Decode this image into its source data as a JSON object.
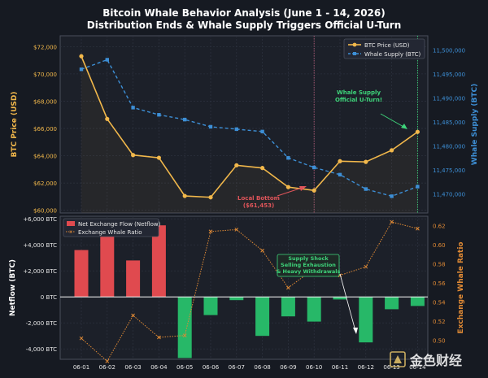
{
  "chart_data": [
    {
      "type": "line",
      "title": "Bitcoin Whale Behavior Analysis (June 1 - 14, 2026)",
      "subtitle": "Distribution Ends & Whale Supply Triggers Official U-Turn",
      "x": [
        "06-01",
        "06-02",
        "06-03",
        "06-04",
        "06-05",
        "06-06",
        "06-07",
        "06-08",
        "06-09",
        "06-10",
        "06-11",
        "06-12",
        "06-13",
        "06-14"
      ],
      "ylabel_left": "BTC Price (USD)",
      "ylabel_right": "Whale Supply (BTC)",
      "ylim_left": [
        59800,
        72800
      ],
      "ylim_right": [
        11466000,
        11503000
      ],
      "yticks_left": [
        60000,
        62000,
        64000,
        66000,
        68000,
        70000,
        72000
      ],
      "yticks_left_labels": [
        "$60,000",
        "$62,000",
        "$64,000",
        "$66,000",
        "$68,000",
        "$70,000",
        "$72,000"
      ],
      "yticks_right": [
        11470000,
        11475000,
        11480000,
        11485000,
        11490000,
        11495000,
        11500000
      ],
      "yticks_right_labels": [
        "11,470,000",
        "11,475,000",
        "11,480,000",
        "11,485,000",
        "11,490,000",
        "11,495,000",
        "11,500,000"
      ],
      "series": [
        {
          "name": "BTC Price (USD)",
          "axis": "left",
          "style": "solid-circle",
          "color": "#f2b84b",
          "values": [
            71300,
            66700,
            64050,
            63850,
            61050,
            60950,
            63300,
            63100,
            61700,
            61453,
            63600,
            63550,
            64400,
            65750
          ]
        },
        {
          "name": "Whale Supply (BTC)",
          "axis": "right",
          "style": "dashed-square",
          "color": "#3d8fd6",
          "values": [
            11496000,
            11498000,
            11488000,
            11486500,
            11485500,
            11484000,
            11483500,
            11483000,
            11477500,
            11475500,
            11474000,
            11471000,
            11469500,
            11471500
          ]
        }
      ],
      "annotations": [
        {
          "text": [
            "Whale Supply",
            "Official U-Turn!"
          ],
          "color": "#3ed47a",
          "target_x": "06-14",
          "target_series": "Whale Supply (BTC)"
        },
        {
          "text": [
            "Local Bottom",
            "($61,453)"
          ],
          "color": "#e0555a",
          "target_x": "06-10",
          "target_series": "BTC Price (USD)"
        }
      ],
      "vlines": [
        {
          "x": "06-10",
          "color": "#b05a78"
        },
        {
          "x": "06-14",
          "color": "#3ed47a"
        }
      ],
      "legend": [
        "BTC Price (USD)",
        "Whale Supply (BTC)"
      ],
      "legend_position": "top-right",
      "grid": true
    },
    {
      "type": "bar",
      "x": [
        "06-01",
        "06-02",
        "06-03",
        "06-04",
        "06-05",
        "06-06",
        "06-07",
        "06-08",
        "06-09",
        "06-10",
        "06-11",
        "06-12",
        "06-13",
        "06-14"
      ],
      "ylabel_left": "Netflow (BTC)",
      "ylabel_right": "Exchange Whale Ratio",
      "ylim_left": [
        -4800,
        6200
      ],
      "ylim_right": [
        0.48,
        0.63
      ],
      "yticks_left": [
        -4000,
        -2000,
        0,
        2000,
        4000,
        6000
      ],
      "yticks_left_labels": [
        "-4,000 BTC",
        "-2,000 BTC",
        "0 BTC",
        "+2,000 BTC",
        "+4,000 BTC",
        "+6,000 BTC"
      ],
      "yticks_right": [
        0.5,
        0.52,
        0.54,
        0.56,
        0.58,
        0.6,
        0.62
      ],
      "yticks_right_labels": [
        "0.50",
        "0.52",
        "0.54",
        "0.56",
        "0.58",
        "0.60",
        "0.62"
      ],
      "series": [
        {
          "name": "Net Exchange Flow (Netflow)",
          "axis": "left",
          "type": "bar",
          "positive_color": "#e04a4f",
          "negative_color": "#27b868",
          "values": [
            3600,
            5000,
            2800,
            5500,
            -4700,
            -1400,
            -250,
            -3000,
            -1500,
            -1900,
            -200,
            -3500,
            -950,
            -700
          ]
        },
        {
          "name": "Exchange Whale Ratio",
          "axis": "right",
          "type": "line",
          "style": "dotted-x",
          "color": "#e08a35",
          "values": [
            0.502,
            0.478,
            0.526,
            0.503,
            0.505,
            0.614,
            0.616,
            0.594,
            0.555,
            0.575,
            0.568,
            0.577,
            0.624,
            0.617
          ]
        }
      ],
      "annotations": [
        {
          "text": [
            "Supply Shock",
            "Selling Exhaustion",
            "& Heavy Withdrawals"
          ],
          "color": "#3ed47a",
          "target_x": "06-12",
          "target_series": "Net Exchange Flow (Netflow)"
        }
      ],
      "legend": [
        "Net Exchange Flow (Netflow)",
        "Exchange Whale Ratio"
      ],
      "legend_position": "top-left",
      "grid": true
    }
  ],
  "watermark": "金色财经"
}
